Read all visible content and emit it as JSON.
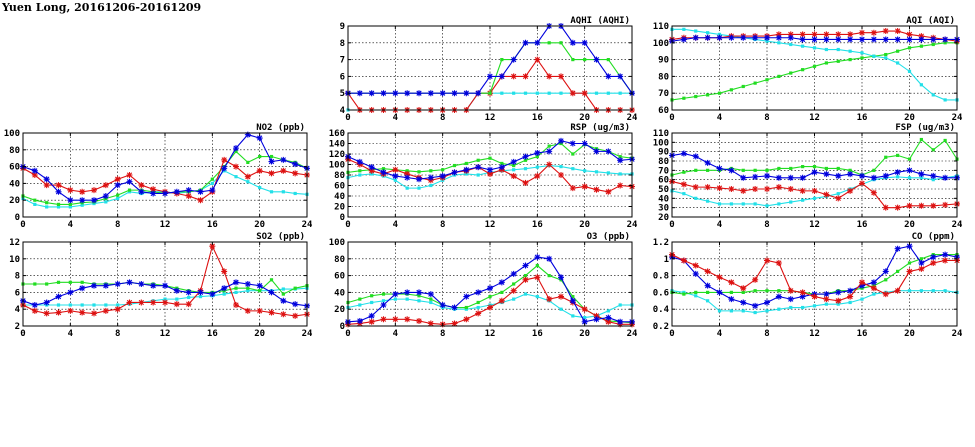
{
  "title": "Yuen Long, 20161206-20161209",
  "colors": {
    "blue": "#0000dd",
    "green": "#22dd22",
    "red": "#dd1111",
    "cyan": "#22e0e8"
  },
  "chart_data": [
    {
      "id": "aqhi",
      "type": "line",
      "title": "AQHI (AQHI)",
      "xlim": [
        0,
        24
      ],
      "ylim": [
        4,
        9
      ],
      "xticks": [
        0,
        4,
        8,
        12,
        16,
        20,
        24
      ],
      "yticks": [
        4,
        5,
        6,
        7,
        8,
        9
      ],
      "grid": true,
      "series": [
        {
          "color": "cyan",
          "values": [
            4,
            4,
            4,
            4,
            4,
            4,
            4,
            4,
            4,
            4,
            4,
            5,
            5,
            5,
            5,
            5,
            5,
            5,
            5,
            5,
            5,
            5,
            5,
            5,
            5
          ]
        },
        {
          "color": "red",
          "values": [
            5,
            4,
            4,
            4,
            4,
            4,
            4,
            4,
            4,
            4,
            4,
            5,
            5,
            6,
            6,
            6,
            7,
            6,
            6,
            5,
            5,
            4,
            4,
            4,
            4
          ]
        },
        {
          "color": "green",
          "values": [
            5,
            5,
            5,
            5,
            5,
            5,
            5,
            5,
            5,
            5,
            5,
            5,
            5,
            7,
            7,
            8,
            8,
            8,
            8,
            7,
            7,
            7,
            7,
            6,
            5
          ]
        },
        {
          "color": "blue",
          "values": [
            5,
            5,
            5,
            5,
            5,
            5,
            5,
            5,
            5,
            5,
            5,
            5,
            6,
            6,
            7,
            8,
            8,
            9,
            9,
            8,
            8,
            7,
            6,
            6,
            5
          ]
        }
      ]
    },
    {
      "id": "aqi",
      "type": "line",
      "title": "AQI (AQI)",
      "xlim": [
        0,
        24
      ],
      "ylim": [
        60,
        110
      ],
      "xticks": [
        0,
        4,
        8,
        12,
        16,
        20,
        24
      ],
      "yticks": [
        60,
        70,
        80,
        90,
        100,
        110
      ],
      "grid": true,
      "series": [
        {
          "color": "green",
          "values": [
            66,
            67,
            68,
            69,
            70,
            72,
            74,
            76,
            78,
            80,
            82,
            84,
            86,
            88,
            89,
            90,
            91,
            92,
            93,
            95,
            97,
            98,
            99,
            100,
            100
          ]
        },
        {
          "color": "cyan",
          "values": [
            108,
            108,
            107,
            106,
            105,
            104,
            103,
            102,
            101,
            100,
            99,
            98,
            97,
            96,
            96,
            95,
            94,
            92,
            91,
            88,
            83,
            75,
            69,
            66,
            66
          ]
        },
        {
          "color": "red",
          "values": [
            102,
            103,
            103,
            103,
            103,
            104,
            104,
            104,
            104,
            105,
            105,
            105,
            105,
            105,
            105,
            105,
            106,
            106,
            107,
            107,
            105,
            104,
            103,
            102,
            101
          ]
        },
        {
          "color": "blue",
          "values": [
            101,
            102,
            103,
            103,
            103,
            103,
            103,
            103,
            103,
            103,
            103,
            102,
            102,
            102,
            102,
            102,
            102,
            102,
            102,
            102,
            102,
            102,
            102,
            102,
            102
          ]
        }
      ]
    },
    {
      "id": "no2",
      "type": "line",
      "title": "NO2 (ppb)",
      "xlim": [
        0,
        24
      ],
      "ylim": [
        0,
        100
      ],
      "xticks": [
        0,
        4,
        8,
        12,
        16,
        20,
        24
      ],
      "yticks": [
        0,
        20,
        40,
        60,
        80,
        100
      ],
      "grid": true,
      "series": [
        {
          "color": "cyan",
          "values": [
            22,
            15,
            12,
            12,
            12,
            14,
            16,
            18,
            22,
            30,
            28,
            30,
            30,
            28,
            30,
            32,
            40,
            55,
            48,
            42,
            35,
            30,
            30,
            28,
            27
          ]
        },
        {
          "color": "green",
          "values": [
            25,
            20,
            17,
            15,
            15,
            17,
            18,
            22,
            26,
            32,
            32,
            30,
            28,
            30,
            30,
            32,
            45,
            60,
            78,
            65,
            72,
            72,
            68,
            65,
            58
          ]
        },
        {
          "color": "red",
          "values": [
            58,
            50,
            38,
            38,
            32,
            30,
            32,
            38,
            45,
            50,
            38,
            33,
            30,
            28,
            25,
            20,
            30,
            68,
            60,
            48,
            55,
            52,
            55,
            52,
            50
          ]
        },
        {
          "color": "blue",
          "values": [
            60,
            55,
            45,
            30,
            20,
            20,
            20,
            25,
            38,
            42,
            30,
            28,
            28,
            30,
            32,
            30,
            32,
            58,
            82,
            98,
            94,
            66,
            68,
            63,
            58
          ]
        }
      ]
    },
    {
      "id": "rsp",
      "type": "line",
      "title": "RSP (ug/m3)",
      "xlim": [
        0,
        24
      ],
      "ylim": [
        0,
        160
      ],
      "xticks": [
        0,
        4,
        8,
        12,
        16,
        20,
        24
      ],
      "yticks": [
        0,
        20,
        40,
        60,
        80,
        100,
        120,
        140,
        160
      ],
      "grid": true,
      "series": [
        {
          "color": "cyan",
          "values": [
            75,
            80,
            82,
            78,
            70,
            55,
            55,
            60,
            70,
            80,
            82,
            80,
            85,
            88,
            90,
            92,
            95,
            98,
            96,
            92,
            88,
            86,
            84,
            82,
            82
          ]
        },
        {
          "color": "green",
          "values": [
            85,
            88,
            90,
            92,
            90,
            88,
            86,
            88,
            90,
            98,
            102,
            108,
            112,
            102,
            98,
            108,
            115,
            135,
            140,
            120,
            138,
            130,
            125,
            115,
            112
          ]
        },
        {
          "color": "red",
          "values": [
            110,
            100,
            88,
            82,
            90,
            82,
            75,
            70,
            75,
            85,
            88,
            95,
            82,
            90,
            78,
            65,
            78,
            100,
            80,
            55,
            58,
            52,
            48,
            60,
            58
          ]
        },
        {
          "color": "blue",
          "values": [
            115,
            105,
            95,
            85,
            78,
            75,
            72,
            75,
            78,
            85,
            90,
            95,
            90,
            95,
            105,
            115,
            122,
            125,
            145,
            140,
            140,
            125,
            125,
            108,
            110
          ]
        }
      ]
    },
    {
      "id": "fsp",
      "type": "line",
      "title": "FSP (ug/m3)",
      "xlim": [
        0,
        24
      ],
      "ylim": [
        20,
        110
      ],
      "xticks": [
        0,
        4,
        8,
        12,
        16,
        20,
        24
      ],
      "yticks": [
        20,
        30,
        40,
        50,
        60,
        70,
        80,
        90,
        100,
        110
      ],
      "grid": true,
      "series": [
        {
          "color": "cyan",
          "values": [
            48,
            45,
            40,
            37,
            34,
            34,
            34,
            34,
            32,
            34,
            36,
            38,
            40,
            42,
            45,
            50,
            55,
            60,
            62,
            63,
            62,
            62,
            60,
            62,
            64
          ]
        },
        {
          "color": "red",
          "values": [
            58,
            55,
            52,
            52,
            51,
            50,
            48,
            50,
            50,
            52,
            50,
            48,
            48,
            44,
            40,
            48,
            56,
            46,
            30,
            30,
            32,
            32,
            32,
            33,
            34
          ]
        },
        {
          "color": "green",
          "values": [
            65,
            68,
            70,
            70,
            70,
            72,
            70,
            70,
            70,
            72,
            72,
            74,
            74,
            72,
            72,
            70,
            65,
            70,
            84,
            86,
            82,
            103,
            92,
            102,
            82
          ]
        },
        {
          "color": "blue",
          "values": [
            86,
            88,
            85,
            78,
            72,
            70,
            62,
            63,
            64,
            62,
            62,
            62,
            68,
            66,
            64,
            66,
            64,
            62,
            64,
            68,
            70,
            66,
            64,
            62,
            62
          ]
        }
      ]
    },
    {
      "id": "so2",
      "type": "line",
      "title": "SO2 (ppb)",
      "xlim": [
        0,
        24
      ],
      "ylim": [
        2,
        12
      ],
      "xticks": [
        0,
        4,
        8,
        12,
        16,
        20,
        24
      ],
      "yticks": [
        2,
        4,
        6,
        8,
        10,
        12
      ],
      "grid": true,
      "series": [
        {
          "color": "cyan",
          "values": [
            4.5,
            4.5,
            4.5,
            4.5,
            4.5,
            4.5,
            4.5,
            4.5,
            4.5,
            4.6,
            4.8,
            5.0,
            5.2,
            5.2,
            5.4,
            5.5,
            5.6,
            5.8,
            6.0,
            6.2,
            6.2,
            6.2,
            6.4,
            6.4,
            6.5
          ]
        },
        {
          "color": "green",
          "values": [
            7.0,
            7.0,
            7.0,
            7.2,
            7.2,
            7.2,
            7.0,
            7.0,
            7.0,
            7.2,
            7.0,
            7.0,
            6.8,
            6.5,
            6.2,
            6.0,
            6.0,
            6.2,
            6.5,
            6.5,
            6.2,
            7.5,
            5.8,
            6.5,
            6.8
          ]
        },
        {
          "color": "red",
          "values": [
            4.5,
            3.8,
            3.5,
            3.6,
            3.8,
            3.6,
            3.5,
            3.8,
            4.0,
            4.8,
            4.8,
            4.8,
            4.8,
            4.6,
            4.6,
            6.2,
            11.5,
            8.5,
            4.5,
            3.8,
            3.8,
            3.6,
            3.4,
            3.2,
            3.4
          ]
        },
        {
          "color": "blue",
          "values": [
            5.0,
            4.5,
            4.8,
            5.5,
            6.0,
            6.5,
            6.8,
            6.8,
            7.0,
            7.2,
            7.0,
            6.8,
            6.8,
            6.2,
            6.0,
            6.0,
            5.8,
            6.5,
            7.2,
            7.0,
            6.8,
            6.0,
            5.0,
            4.6,
            4.4
          ]
        }
      ]
    },
    {
      "id": "o3",
      "type": "line",
      "title": "O3 (ppb)",
      "xlim": [
        0,
        24
      ],
      "ylim": [
        0,
        100
      ],
      "xticks": [
        0,
        4,
        8,
        12,
        16,
        20,
        24
      ],
      "yticks": [
        0,
        20,
        40,
        60,
        80,
        100
      ],
      "grid": true,
      "series": [
        {
          "color": "cyan",
          "values": [
            22,
            25,
            28,
            30,
            32,
            32,
            30,
            28,
            22,
            20,
            20,
            22,
            25,
            28,
            32,
            38,
            35,
            30,
            20,
            12,
            10,
            12,
            18,
            25,
            25
          ]
        },
        {
          "color": "green",
          "values": [
            28,
            32,
            36,
            38,
            38,
            38,
            36,
            32,
            25,
            22,
            22,
            28,
            35,
            40,
            50,
            60,
            72,
            60,
            55,
            35,
            20,
            12,
            6,
            5,
            4
          ]
        },
        {
          "color": "red",
          "values": [
            2,
            3,
            5,
            8,
            8,
            8,
            6,
            3,
            2,
            3,
            8,
            15,
            22,
            30,
            42,
            55,
            58,
            32,
            35,
            28,
            20,
            12,
            5,
            2,
            2
          ]
        },
        {
          "color": "blue",
          "values": [
            5,
            6,
            12,
            25,
            38,
            40,
            40,
            38,
            25,
            22,
            35,
            40,
            45,
            52,
            62,
            72,
            82,
            80,
            58,
            30,
            5,
            8,
            10,
            5,
            5
          ]
        }
      ]
    },
    {
      "id": "co",
      "type": "line",
      "title": "CO (ppm)",
      "xlim": [
        0,
        24
      ],
      "ylim": [
        0.2,
        1.2
      ],
      "xticks": [
        0,
        4,
        8,
        12,
        16,
        20,
        24
      ],
      "yticks": [
        0.2,
        0.4,
        0.6,
        0.8,
        1.0,
        1.2
      ],
      "grid": true,
      "series": [
        {
          "color": "cyan",
          "values": [
            0.62,
            0.6,
            0.56,
            0.5,
            0.38,
            0.38,
            0.38,
            0.36,
            0.38,
            0.4,
            0.42,
            0.42,
            0.44,
            0.46,
            0.46,
            0.48,
            0.52,
            0.58,
            0.6,
            0.62,
            0.62,
            0.62,
            0.62,
            0.62,
            0.6
          ]
        },
        {
          "color": "green",
          "values": [
            0.6,
            0.58,
            0.6,
            0.6,
            0.6,
            0.6,
            0.6,
            0.62,
            0.62,
            0.62,
            0.62,
            0.6,
            0.58,
            0.58,
            0.62,
            0.62,
            0.65,
            0.68,
            0.75,
            0.85,
            0.95,
            1.0,
            1.05,
            1.05,
            1.05
          ]
        },
        {
          "color": "blue",
          "values": [
            1.02,
            0.98,
            0.82,
            0.68,
            0.6,
            0.52,
            0.48,
            0.44,
            0.48,
            0.55,
            0.52,
            0.55,
            0.58,
            0.58,
            0.6,
            0.62,
            0.68,
            0.72,
            0.85,
            1.12,
            1.15,
            0.95,
            1.02,
            1.05,
            1.02
          ]
        },
        {
          "color": "red",
          "values": [
            1.05,
            0.98,
            0.92,
            0.85,
            0.78,
            0.72,
            0.65,
            0.75,
            0.98,
            0.95,
            0.62,
            0.6,
            0.55,
            0.52,
            0.5,
            0.55,
            0.72,
            0.65,
            0.58,
            0.62,
            0.85,
            0.88,
            0.95,
            0.98,
            0.98
          ]
        }
      ]
    }
  ]
}
